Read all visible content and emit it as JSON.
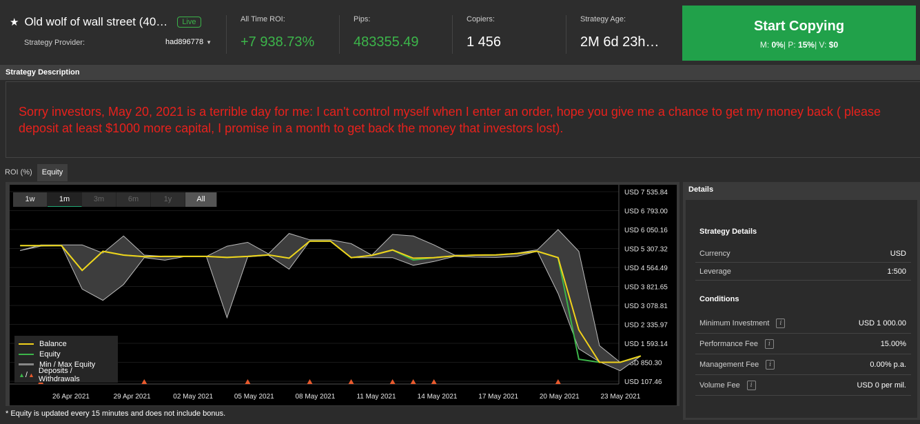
{
  "header": {
    "strategy_name": "Old wolf of wall street (40…",
    "live_label": "Live",
    "provider_label": "Strategy Provider:",
    "provider_name": "had896778",
    "stats": [
      {
        "label": "All Time ROI:",
        "value": "+7 938.73%"
      },
      {
        "label": "Pips:",
        "value": "483355.49"
      },
      {
        "label": "Copiers:",
        "value": "1 456"
      },
      {
        "label": "Strategy Age:",
        "value": "2M 6d 23h…"
      }
    ],
    "start_button": {
      "label": "Start Copying",
      "m_label": "M:",
      "m_value": "0%",
      "p_label": "P:",
      "p_value": "15%",
      "v_label": "V:",
      "v_value": "$0"
    },
    "colors": {
      "accent_green": "#3cb54a",
      "button_green": "#21a14a"
    }
  },
  "description": {
    "title": "Strategy Description",
    "text": "Sorry investors, May 20, 2021 is a terrible day for me: I can't control myself when I enter an order, hope you give me a chance to get my money back ( please deposit at least $1000 more capital, I promise in a month to get back the money that investors lost).",
    "text_color": "#e8211c"
  },
  "tabs": [
    {
      "label": "ROI (%)",
      "active": false
    },
    {
      "label": "Equity",
      "active": true
    }
  ],
  "range_buttons": [
    "1w",
    "1m",
    "3m",
    "6m",
    "1y",
    "All"
  ],
  "legend": {
    "balance": "Balance",
    "equity": "Equity",
    "minmax": "Min / Max Equity",
    "slash": "/",
    "deposits": "Deposits / Withdrawals"
  },
  "footnote": "* Equity is updated every 15 minutes and does not include bonus.",
  "chart_data": {
    "type": "line",
    "ylabels": [
      "USD 7 535.84",
      "USD 6 793.00",
      "USD 6 050.16",
      "USD 5 307.32",
      "USD 4 564.49",
      "USD 3 821.65",
      "USD 3 078.81",
      "USD 2 335.97",
      "USD 1 593.14",
      "USD 850.30",
      "USD 107.46"
    ],
    "ylim": [
      107.46,
      7535.84
    ],
    "xlabels": [
      "26 Apr 2021",
      "29 Apr 2021",
      "02 May 2021",
      "05 May 2021",
      "08 May 2021",
      "11 May 2021",
      "14 May 2021",
      "17 May 2021",
      "20 May 2021",
      "23 May 2021"
    ],
    "x_days": [
      -5,
      -4,
      -3,
      -2,
      -1,
      0,
      1,
      2,
      3,
      4,
      5,
      6,
      7,
      8,
      9,
      10,
      11,
      12,
      13,
      14,
      15,
      16,
      17,
      18,
      19,
      20,
      21,
      22,
      23,
      24,
      25,
      26,
      27,
      28,
      29
    ],
    "series": [
      {
        "name": "Balance",
        "color": "#f2d21b",
        "values": [
          5420,
          5420,
          5420,
          4450,
          5200,
          5050,
          4990,
          5000,
          5000,
          5000,
          4960,
          5000,
          5060,
          4930,
          5600,
          5600,
          4950,
          5040,
          5250,
          4930,
          4950,
          5020,
          5050,
          5060,
          5110,
          5200,
          4950,
          2120,
          850,
          850,
          1100
        ]
      },
      {
        "name": "Equity",
        "color": "#3cb54a",
        "values": [
          5420,
          5420,
          5420,
          4450,
          5200,
          5050,
          4990,
          5000,
          5000,
          5000,
          4960,
          5000,
          5060,
          4930,
          5600,
          5600,
          4950,
          5040,
          5250,
          4860,
          4950,
          5020,
          5050,
          5060,
          5110,
          5200,
          4950,
          970,
          850,
          850,
          1100
        ]
      },
      {
        "name": "Max Equity",
        "color": "#bdbdbd",
        "values": [
          5230,
          5450,
          5450,
          5450,
          5130,
          5800,
          5050,
          5000,
          5000,
          5000,
          5400,
          5550,
          5100,
          5900,
          5650,
          5650,
          5500,
          5050,
          5860,
          5800,
          5450,
          5050,
          5050,
          5050,
          5130,
          5260,
          6050,
          5200,
          1500,
          850,
          1100
        ]
      },
      {
        "name": "Min Equity",
        "color": "#bdbdbd",
        "values": [
          5230,
          5400,
          5420,
          3720,
          3280,
          3900,
          4950,
          4850,
          5000,
          5000,
          2600,
          4980,
          5040,
          4500,
          5600,
          5600,
          4950,
          4950,
          4950,
          4650,
          4800,
          5000,
          4970,
          4960,
          5000,
          5200,
          3550,
          1380,
          870,
          520,
          1100
        ]
      }
    ],
    "deposit_markers": [
      1,
      6,
      11,
      14,
      16,
      18,
      19,
      20,
      26
    ],
    "legend_position": "bottom-left"
  },
  "details": {
    "panel_title": "Details",
    "section1": "Strategy Details",
    "rows1": [
      {
        "k": "Currency",
        "v": "USD"
      },
      {
        "k": "Leverage",
        "v": "1:500"
      }
    ],
    "section2": "Conditions",
    "rows2": [
      {
        "k": "Minimum Investment",
        "v": "USD 1 000.00"
      },
      {
        "k": "Performance Fee",
        "v": "15.00%"
      },
      {
        "k": "Management Fee",
        "v": "0.00% p.a."
      },
      {
        "k": "Volume Fee",
        "v": "USD 0 per mil."
      }
    ]
  }
}
